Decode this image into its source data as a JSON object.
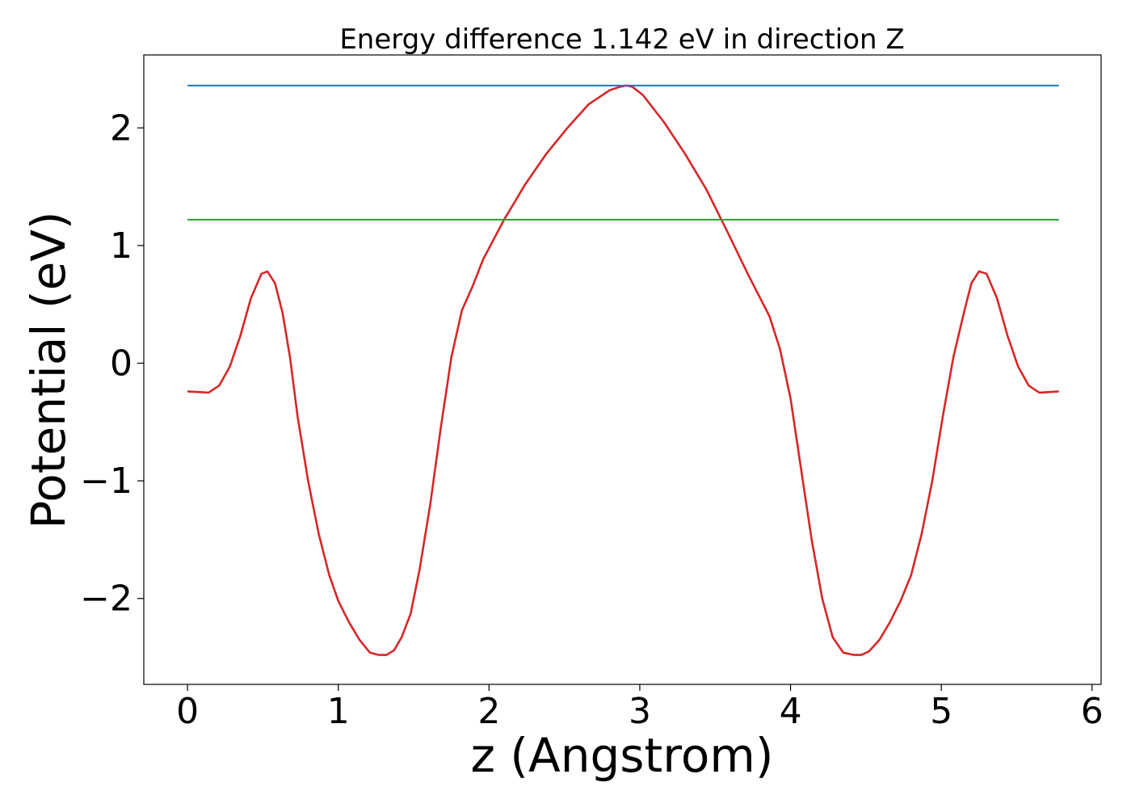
{
  "chart_data": {
    "type": "line",
    "title": "Energy difference 1.142 eV in direction Z",
    "xlabel": "z (Angstrom)",
    "ylabel": "Potential (eV)",
    "xlim": [
      -0.29,
      6.06
    ],
    "ylim": [
      -2.73,
      2.62
    ],
    "xticks": [
      {
        "value": 0,
        "label": "0"
      },
      {
        "value": 1,
        "label": "1"
      },
      {
        "value": 2,
        "label": "2"
      },
      {
        "value": 3,
        "label": "3"
      },
      {
        "value": 4,
        "label": "4"
      },
      {
        "value": 5,
        "label": "5"
      },
      {
        "value": 6,
        "label": "6"
      }
    ],
    "yticks": [
      {
        "value": -2,
        "label": "−2"
      },
      {
        "value": -1,
        "label": "−1"
      },
      {
        "value": 0,
        "label": "0"
      },
      {
        "value": 1,
        "label": "1"
      },
      {
        "value": 2,
        "label": "2"
      }
    ],
    "grid": false,
    "series": [
      {
        "color": "#d62728",
        "x": [
          0.0,
          0.07,
          0.14,
          0.21,
          0.28,
          0.35,
          0.42,
          0.49,
          0.53,
          0.58,
          0.63,
          0.68,
          0.73,
          0.8,
          0.87,
          0.94,
          1.0,
          1.07,
          1.14,
          1.21,
          1.27,
          1.32,
          1.37,
          1.42,
          1.48,
          1.54,
          1.61,
          1.68,
          1.75,
          1.82,
          1.89,
          1.96,
          2.03,
          2.1,
          2.24,
          2.38,
          2.52,
          2.66,
          2.8,
          2.87,
          2.91,
          2.95,
          3.02,
          3.16,
          3.3,
          3.44,
          3.58,
          3.72,
          3.86,
          3.93,
          4.0,
          4.07,
          4.14,
          4.21,
          4.28,
          4.35,
          4.42,
          4.47,
          4.52,
          4.59,
          4.66,
          4.73,
          4.8,
          4.87,
          4.94,
          5.01,
          5.08,
          5.15,
          5.2,
          5.25,
          5.3,
          5.37,
          5.44,
          5.51,
          5.58,
          5.65,
          5.72,
          5.78
        ],
        "y": [
          -0.24,
          -0.245,
          -0.25,
          -0.19,
          -0.03,
          0.23,
          0.55,
          0.76,
          0.78,
          0.68,
          0.43,
          0.05,
          -0.45,
          -1.0,
          -1.45,
          -1.8,
          -2.02,
          -2.2,
          -2.35,
          -2.46,
          -2.48,
          -2.48,
          -2.44,
          -2.33,
          -2.13,
          -1.75,
          -1.2,
          -0.55,
          0.05,
          0.45,
          0.65,
          0.88,
          1.05,
          1.22,
          1.52,
          1.78,
          2.0,
          2.2,
          2.32,
          2.35,
          2.36,
          2.35,
          2.28,
          2.05,
          1.78,
          1.48,
          1.12,
          0.75,
          0.4,
          0.12,
          -0.3,
          -0.9,
          -1.5,
          -2.0,
          -2.33,
          -2.46,
          -2.48,
          -2.48,
          -2.45,
          -2.35,
          -2.2,
          -2.02,
          -1.8,
          -1.45,
          -1.0,
          -0.45,
          0.05,
          0.43,
          0.68,
          0.78,
          0.76,
          0.55,
          0.23,
          -0.03,
          -0.19,
          -0.25,
          -0.245,
          -0.24
        ]
      },
      {
        "color": "#1f77b4",
        "x": [
          0.0,
          5.78
        ],
        "y": [
          2.36,
          2.36
        ]
      },
      {
        "color": "#2ca02c",
        "x": [
          0.0,
          5.78
        ],
        "y": [
          1.22,
          1.22
        ]
      }
    ]
  }
}
